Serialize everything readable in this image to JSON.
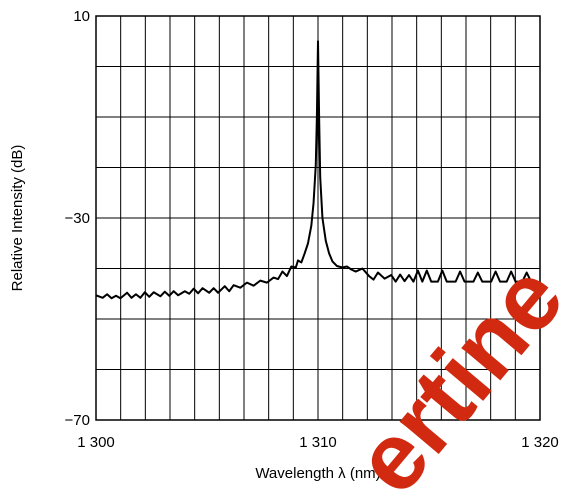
{
  "chart_data": {
    "type": "line",
    "title": "",
    "xlabel": "Wavelength  λ (nm)",
    "ylabel": "Relative Intensity  (dB)",
    "xlim": [
      1300,
      1320
    ],
    "ylim": [
      -70,
      10
    ],
    "x_ticks": [
      1300,
      1310,
      1320
    ],
    "x_tick_labels": [
      "1 300",
      "1 310",
      "1 320"
    ],
    "y_ticks": [
      -70,
      -30,
      10
    ],
    "y_tick_labels": [
      "−70",
      "−30",
      "10"
    ],
    "grid": true,
    "x_grid_step": 1.1111,
    "y_grid_step": 10,
    "series": [
      {
        "values": [
          [
            1300.0,
            -45.3
          ],
          [
            1300.3,
            -45.8
          ],
          [
            1300.5,
            -45.1
          ],
          [
            1300.7,
            -45.9
          ],
          [
            1300.9,
            -45.4
          ],
          [
            1301.1,
            -45.9
          ],
          [
            1301.4,
            -44.8
          ],
          [
            1301.6,
            -45.8
          ],
          [
            1301.8,
            -45.1
          ],
          [
            1302.0,
            -45.8
          ],
          [
            1302.2,
            -44.7
          ],
          [
            1302.4,
            -45.6
          ],
          [
            1302.6,
            -44.7
          ],
          [
            1302.9,
            -45.5
          ],
          [
            1303.1,
            -44.6
          ],
          [
            1303.3,
            -45.4
          ],
          [
            1303.5,
            -44.5
          ],
          [
            1303.7,
            -45.3
          ],
          [
            1304.0,
            -44.5
          ],
          [
            1304.2,
            -45.0
          ],
          [
            1304.4,
            -44.0
          ],
          [
            1304.6,
            -44.9
          ],
          [
            1304.8,
            -43.9
          ],
          [
            1305.1,
            -44.8
          ],
          [
            1305.3,
            -43.9
          ],
          [
            1305.5,
            -44.8
          ],
          [
            1305.8,
            -43.5
          ],
          [
            1306.0,
            -44.5
          ],
          [
            1306.2,
            -43.3
          ],
          [
            1306.5,
            -43.8
          ],
          [
            1306.8,
            -42.8
          ],
          [
            1307.1,
            -43.4
          ],
          [
            1307.4,
            -42.4
          ],
          [
            1307.7,
            -42.8
          ],
          [
            1308.0,
            -41.8
          ],
          [
            1308.2,
            -42.1
          ],
          [
            1308.4,
            -40.6
          ],
          [
            1308.6,
            -41.5
          ],
          [
            1308.8,
            -39.6
          ],
          [
            1309.0,
            -39.8
          ],
          [
            1309.1,
            -38.4
          ],
          [
            1309.25,
            -38.8
          ],
          [
            1309.4,
            -37.0
          ],
          [
            1309.55,
            -35.0
          ],
          [
            1309.7,
            -31.5
          ],
          [
            1309.8,
            -27.0
          ],
          [
            1309.9,
            -19.5
          ],
          [
            1309.95,
            -10.0
          ],
          [
            1310.0,
            5.0
          ],
          [
            1310.05,
            -10.0
          ],
          [
            1310.1,
            -22.0
          ],
          [
            1310.2,
            -30.0
          ],
          [
            1310.35,
            -34.5
          ],
          [
            1310.5,
            -37.0
          ],
          [
            1310.65,
            -38.6
          ],
          [
            1310.85,
            -39.5
          ],
          [
            1311.1,
            -39.8
          ],
          [
            1311.3,
            -39.6
          ],
          [
            1311.5,
            -40.2
          ],
          [
            1311.7,
            -40.6
          ],
          [
            1312.0,
            -40.0
          ],
          [
            1312.3,
            -41.5
          ],
          [
            1312.5,
            -42.2
          ],
          [
            1312.7,
            -40.8
          ],
          [
            1313.0,
            -42.0
          ],
          [
            1313.3,
            -41.3
          ],
          [
            1313.5,
            -42.6
          ],
          [
            1313.7,
            -41.2
          ],
          [
            1313.9,
            -42.5
          ],
          [
            1314.1,
            -41.3
          ],
          [
            1314.3,
            -42.6
          ],
          [
            1314.5,
            -40.4
          ],
          [
            1314.7,
            -42.6
          ],
          [
            1314.9,
            -40.4
          ],
          [
            1315.1,
            -42.6
          ],
          [
            1315.4,
            -42.6
          ],
          [
            1315.6,
            -40.4
          ],
          [
            1315.8,
            -42.6
          ],
          [
            1316.2,
            -42.6
          ],
          [
            1316.4,
            -40.6
          ],
          [
            1316.6,
            -42.6
          ],
          [
            1317.0,
            -42.6
          ],
          [
            1317.2,
            -40.8
          ],
          [
            1317.4,
            -42.6
          ],
          [
            1317.8,
            -42.6
          ],
          [
            1318.0,
            -40.6
          ],
          [
            1318.2,
            -42.6
          ],
          [
            1318.5,
            -42.6
          ],
          [
            1318.7,
            -40.6
          ],
          [
            1318.9,
            -42.6
          ],
          [
            1319.2,
            -42.6
          ],
          [
            1319.4,
            -40.8
          ],
          [
            1319.6,
            -42.6
          ],
          [
            1320.0,
            -42.8
          ]
        ]
      }
    ]
  },
  "watermark": {
    "text": "ertine",
    "color": "#d12a10"
  }
}
